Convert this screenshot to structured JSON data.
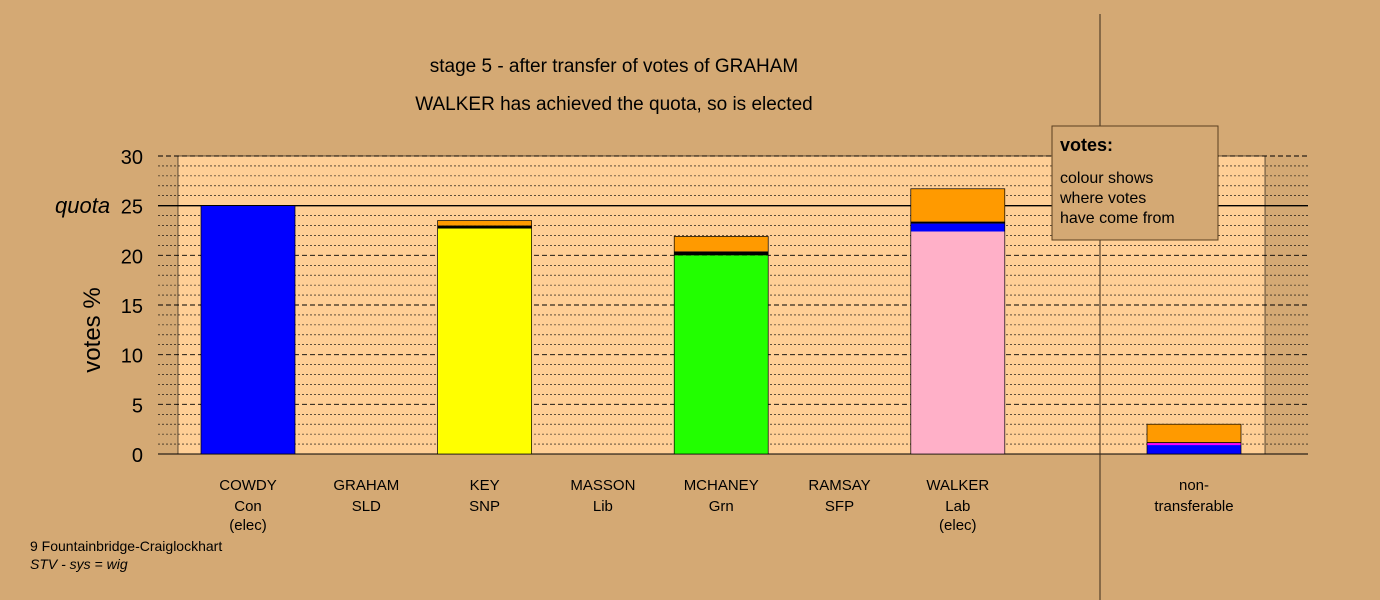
{
  "chart_data": {
    "type": "bar",
    "title": "stage 5 - after transfer of votes of GRAHAM",
    "subtitle": "WALKER has achieved the quota, so is elected",
    "ylabel": "votes %",
    "quota_label": "quota",
    "quota": 25,
    "ylim": [
      0,
      30
    ],
    "yticks": [
      0,
      5,
      10,
      15,
      20,
      25,
      30
    ],
    "grid": true,
    "candidates": [
      {
        "name": "COWDY",
        "party": "Con",
        "status": "(elec)",
        "segments": [
          {
            "value": 25.0,
            "color": "#0000ff"
          }
        ]
      },
      {
        "name": "GRAHAM",
        "party": "SLD",
        "status": "",
        "segments": []
      },
      {
        "name": "KEY",
        "party": "SNP",
        "status": "",
        "segments": [
          {
            "value": 22.7,
            "color": "#ffff00"
          },
          {
            "value": 0.3,
            "color": "#000000"
          },
          {
            "value": 0.5,
            "color": "#ff9a00"
          }
        ]
      },
      {
        "name": "MASSON",
        "party": "Lib",
        "status": "",
        "segments": []
      },
      {
        "name": "MCHANEY",
        "party": "Grn",
        "status": "",
        "segments": [
          {
            "value": 20.0,
            "color": "#22ff00"
          },
          {
            "value": 0.4,
            "color": "#000000"
          },
          {
            "value": 1.5,
            "color": "#ff9a00"
          }
        ]
      },
      {
        "name": "RAMSAY",
        "party": "SFP",
        "status": "",
        "segments": []
      },
      {
        "name": "WALKER",
        "party": "Lab",
        "status": "(elec)",
        "segments": [
          {
            "value": 22.4,
            "color": "#ffb0c8"
          },
          {
            "value": 0.8,
            "color": "#0000ff"
          },
          {
            "value": 0.2,
            "color": "#000000"
          },
          {
            "value": 3.3,
            "color": "#ff9a00"
          }
        ]
      }
    ],
    "nontransferable": {
      "label_line1": "non-",
      "label_line2": "transferable",
      "segments": [
        {
          "value": 0.9,
          "color": "#0000ff"
        },
        {
          "value": 0.2,
          "color": "#ff00ff"
        },
        {
          "value": 0.1,
          "color": "#000000"
        },
        {
          "value": 1.8,
          "color": "#ff9a00"
        }
      ]
    },
    "legend": {
      "title": "votes:",
      "lines": [
        "colour shows",
        "where votes",
        "have come from"
      ],
      "placement": "top-right"
    }
  },
  "footer": {
    "ward": "9 Fountainbridge-Craiglockhart",
    "system": "STV - sys = wig"
  }
}
